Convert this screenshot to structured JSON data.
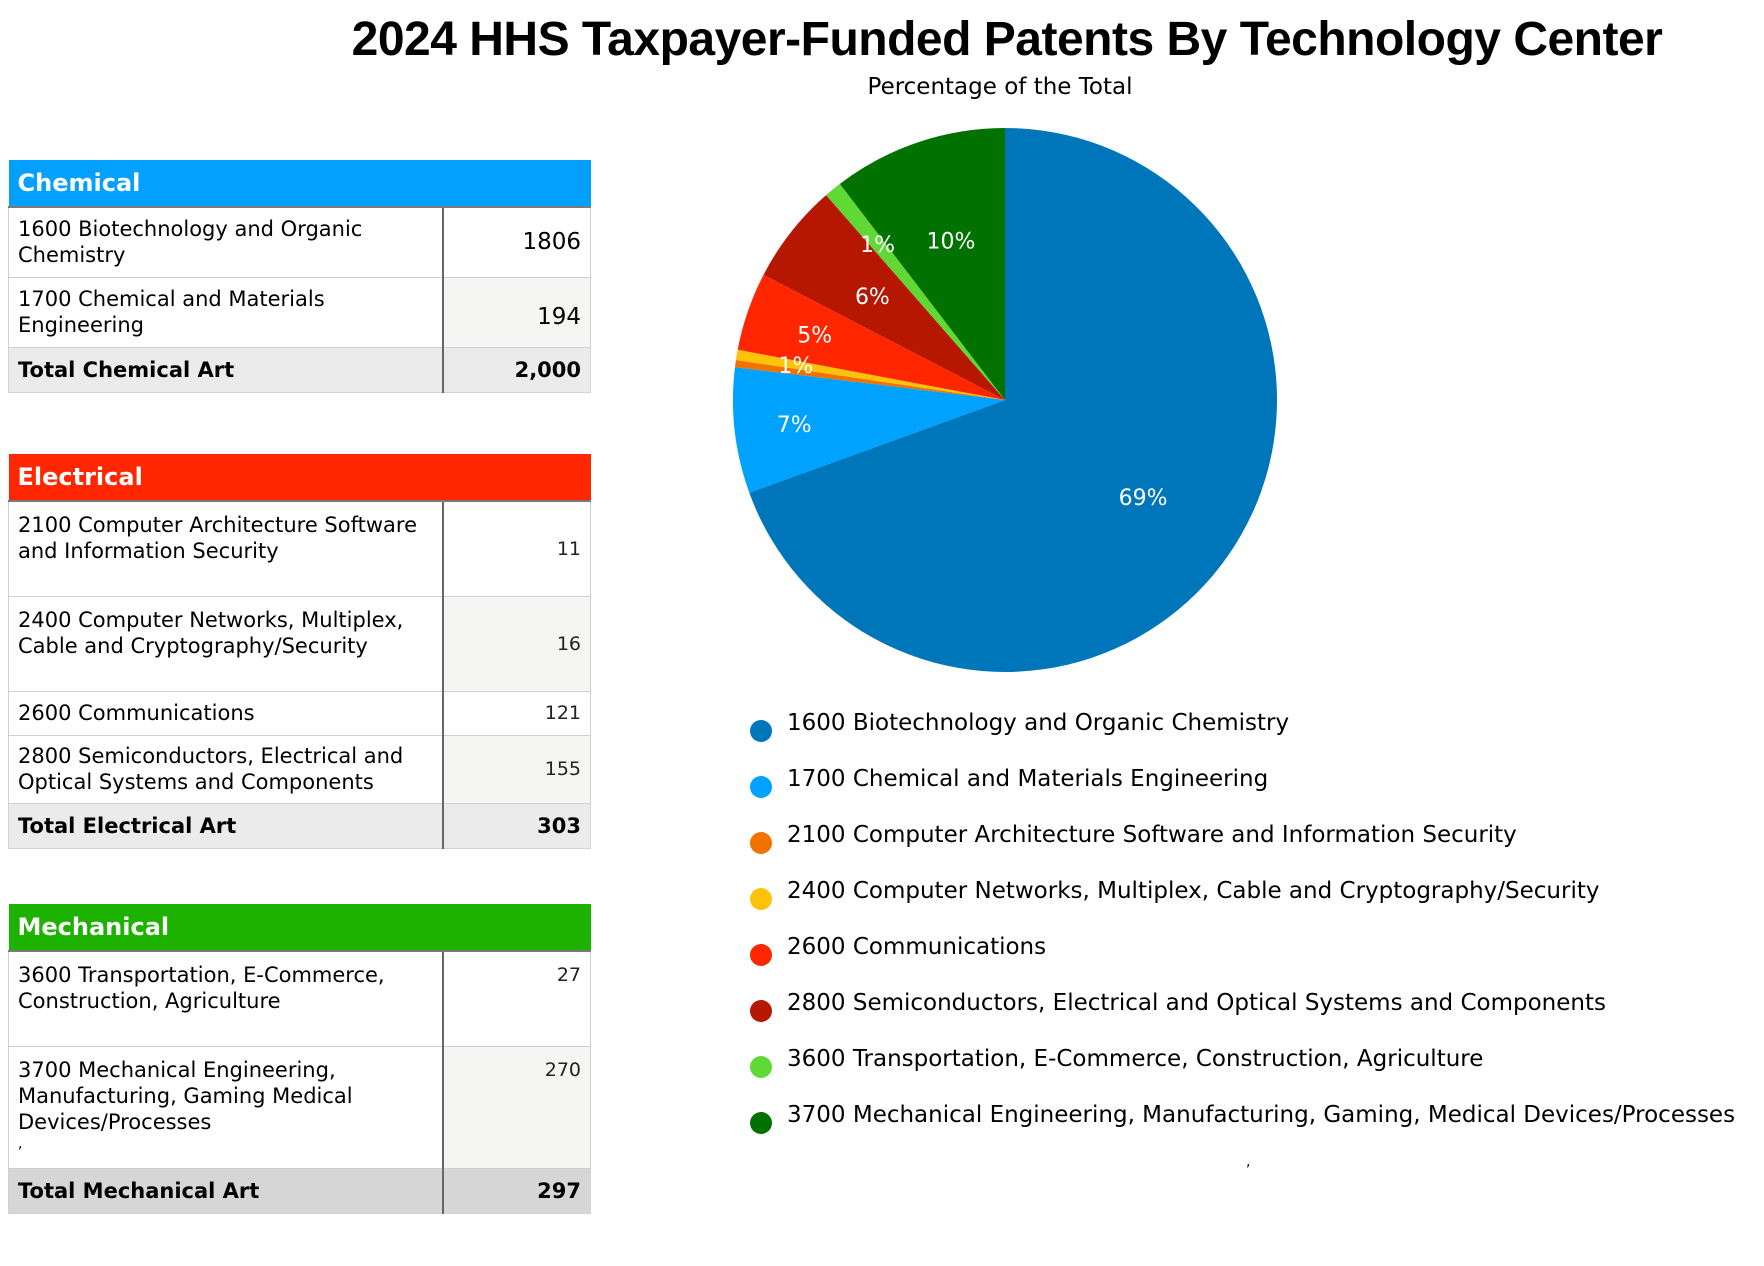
{
  "title": "2024 HHS Taxpayer-Funded Patents By Technology Center",
  "subtitle": "Percentage of the Total",
  "tables": {
    "chemical": {
      "header": "Chemical",
      "color": "#04a0ff",
      "rows": [
        {
          "label": "1600 Biotechnology and Organic Chemistry",
          "value": "1806"
        },
        {
          "label": "1700 Chemical and Materials Engineering",
          "value": "194"
        }
      ],
      "total_label": "Total Chemical Art",
      "total_value": "2,000"
    },
    "electrical": {
      "header": "Electrical",
      "color": "#ff2600",
      "rows": [
        {
          "label": "2100 Computer Architecture Software and Information Security",
          "value": "11"
        },
        {
          "label": "2400 Computer Networks, Multiplex, Cable and Cryptography/Security",
          "value": "16"
        },
        {
          "label": "2600 Communications",
          "value": "121"
        },
        {
          "label": "2800 Semiconductors, Electrical and Optical Systems and Components",
          "value": "155"
        }
      ],
      "total_label": "Total Electrical Art",
      "total_value": "303"
    },
    "mechanical": {
      "header": "Mechanical",
      "color": "#1db100",
      "rows": [
        {
          "label": "3600 Transportation, E-Commerce, Construction, Agriculture",
          "value": "27"
        },
        {
          "label": "3700 Mechanical Engineering, Manufacturing, Gaming Medical Devices/Processes",
          "value": "270",
          "note": ","
        }
      ],
      "total_label": "Total Mechanical Art",
      "total_value": "297"
    }
  },
  "legend_note": ",",
  "chart_data": {
    "type": "pie",
    "title": "Percentage of the Total",
    "start": "12 o'clock, clockwise",
    "legend_position": "bottom",
    "slices": [
      {
        "name": "1600 Biotechnology and Organic Chemistry",
        "value": 1806,
        "label": "69%",
        "color": "#0076ba"
      },
      {
        "name": "1700 Chemical and Materials Engineering",
        "value": 194,
        "label": "7%",
        "color": "#00a2ff"
      },
      {
        "name": "2100 Computer Architecture Software and Information Security",
        "value": 11,
        "label": "",
        "color": "#f27200"
      },
      {
        "name": "2400 Computer Networks, Multiplex, Cable and Cryptography/Security",
        "value": 16,
        "label": "1%",
        "color": "#fec309"
      },
      {
        "name": "2600 Communications",
        "value": 121,
        "label": "5%",
        "color": "#ff2600"
      },
      {
        "name": "2800 Semiconductors, Electrical and Optical Systems and Components",
        "value": 155,
        "label": "6%",
        "color": "#b51700"
      },
      {
        "name": "3600 Transportation, E-Commerce, Construction, Agriculture",
        "value": 27,
        "label": "1%",
        "color": "#60d937"
      },
      {
        "name": "3700 Mechanical Engineering, Manufacturing, Gaming, Medical Devices/Processes",
        "value": 270,
        "label": "10%",
        "color": "#017100"
      }
    ]
  }
}
